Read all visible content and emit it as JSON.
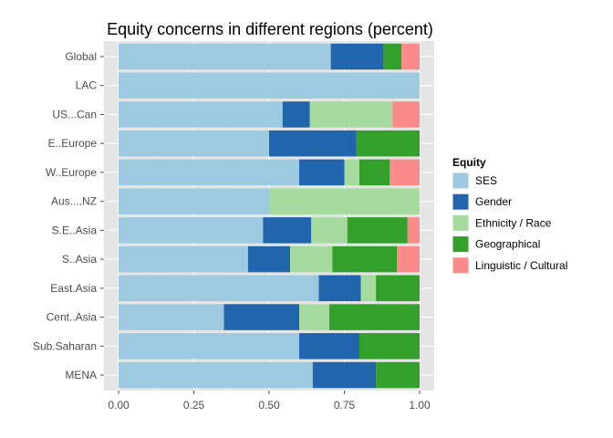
{
  "chart_data": {
    "type": "bar",
    "orientation": "horizontal",
    "stacked": true,
    "title": "Equity concerns in different regions (percent)",
    "xlabel": "",
    "ylabel": "",
    "xlim": [
      0,
      1
    ],
    "xticks": [
      "0.00",
      "0.25",
      "0.50",
      "0.75",
      "1.00"
    ],
    "grid": true,
    "legend_position": "right",
    "legend_title": "Equity",
    "categories": [
      "Global",
      "LAC",
      "US...Can",
      "E..Europe",
      "W..Europe",
      "Aus....NZ",
      "S.E..Asia",
      "S..Asia",
      "East.Asia",
      "Cent..Asia",
      "Sub.Saharan",
      "MENA"
    ],
    "series": [
      {
        "name": "SES",
        "color": "#9ecae1",
        "values": [
          0.705,
          1.0,
          0.545,
          0.5,
          0.6,
          0.5,
          0.48,
          0.43,
          0.665,
          0.35,
          0.6,
          0.645
        ]
      },
      {
        "name": "Gender",
        "color": "#2166ac",
        "values": [
          0.175,
          0.0,
          0.09,
          0.29,
          0.15,
          0.0,
          0.16,
          0.14,
          0.14,
          0.25,
          0.2,
          0.21
        ]
      },
      {
        "name": "Ethnicity / Race",
        "color": "#a6dba0",
        "values": [
          0.0,
          0.0,
          0.275,
          0.0,
          0.05,
          0.5,
          0.12,
          0.14,
          0.05,
          0.1,
          0.0,
          0.0
        ]
      },
      {
        "name": "Geographical",
        "color": "#33a02c",
        "values": [
          0.06,
          0.0,
          0.0,
          0.21,
          0.1,
          0.0,
          0.2,
          0.215,
          0.145,
          0.3,
          0.2,
          0.145
        ]
      },
      {
        "name": "Linguistic / Cultural",
        "color": "#fb8a8a",
        "values": [
          0.06,
          0.0,
          0.09,
          0.0,
          0.1,
          0.0,
          0.04,
          0.075,
          0.0,
          0.0,
          0.0,
          0.0
        ]
      }
    ]
  }
}
